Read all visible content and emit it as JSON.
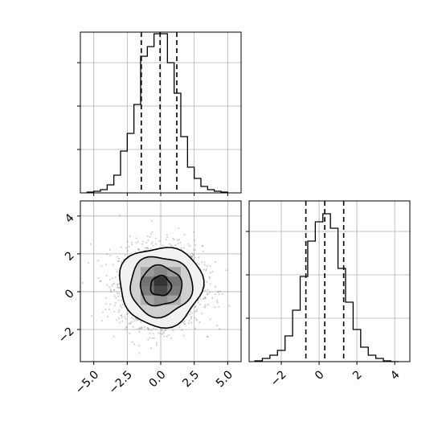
{
  "chart_data": {
    "type": "corner",
    "grid": true,
    "colors": {
      "line": "#000000",
      "grid": "#b0b0b0",
      "scatter": "#8a8a8a"
    },
    "panels": [
      {
        "id": "hist_x",
        "type": "histogram",
        "xlim": [
          -6.0,
          6.0
        ],
        "ylim": [
          0,
          1.0
        ],
        "quantiles": [
          -1.45,
          -0.05,
          1.2
        ],
        "bin_edges": [
          -5.5,
          -5.0,
          -4.5,
          -4.0,
          -3.5,
          -3.0,
          -2.5,
          -2.0,
          -1.5,
          -1.0,
          -0.5,
          0.0,
          0.5,
          1.0,
          1.5,
          2.0,
          2.5,
          3.0,
          3.5,
          4.0,
          4.5,
          5.0
        ],
        "counts": [
          0.005,
          0.01,
          0.02,
          0.05,
          0.11,
          0.26,
          0.37,
          0.55,
          0.85,
          0.91,
          0.99,
          0.99,
          0.81,
          0.62,
          0.35,
          0.16,
          0.09,
          0.04,
          0.02,
          0.01,
          0.005
        ],
        "x_ticks": [
          -5,
          -2.5,
          0,
          2.5,
          5
        ],
        "y_ticks": [
          0.27,
          0.54,
          0.81
        ]
      },
      {
        "id": "hist_y",
        "type": "histogram",
        "xlim": [
          -3.7,
          4.8
        ],
        "ylim": [
          0,
          1.0
        ],
        "quantiles": [
          -0.7,
          0.3,
          1.3
        ],
        "bin_edges": [
          -3.4,
          -3.0,
          -2.6,
          -2.2,
          -1.8,
          -1.4,
          -1.0,
          -0.6,
          -0.2,
          0.2,
          0.6,
          1.0,
          1.4,
          1.8,
          2.2,
          2.6,
          3.0,
          3.4,
          3.8,
          4.2
        ],
        "counts": [
          0.005,
          0.02,
          0.04,
          0.07,
          0.16,
          0.32,
          0.53,
          0.75,
          0.87,
          0.92,
          0.83,
          0.58,
          0.37,
          0.2,
          0.09,
          0.04,
          0.02,
          0.005,
          0.0
        ],
        "x_ticks": [
          -2,
          0,
          2,
          4
        ],
        "x_tick_labels": [
          "−2",
          "0",
          "2",
          "4"
        ],
        "y_ticks": [
          0.27,
          0.54,
          0.81
        ]
      },
      {
        "id": "joint",
        "type": "hist2d",
        "xlim": [
          -6.0,
          6.0
        ],
        "ylim": [
          -3.7,
          4.8
        ],
        "x_ticks": [
          -5,
          -2.5,
          0,
          2.5,
          5
        ],
        "x_tick_labels": [
          "−5.0",
          "−2.5",
          "0.0",
          "2.5",
          "5.0"
        ],
        "y_ticks": [
          -2,
          0,
          2,
          4
        ],
        "y_tick_labels": [
          "−2",
          "0",
          "2",
          "4"
        ],
        "mean": [
          0.0,
          0.3
        ],
        "sigma": [
          1.55,
          1.05
        ],
        "contour_sigmas": [
          0.5,
          1.0,
          1.5,
          2.0
        ],
        "density_cells": [
          {
            "x0": -1.5,
            "x1": -0.5,
            "y0": -0.2,
            "y1": 0.3,
            "level": 0.55
          },
          {
            "x0": -0.5,
            "x1": 0.5,
            "y0": -0.2,
            "y1": 0.3,
            "level": 0.75
          },
          {
            "x0": 0.5,
            "x1": 1.5,
            "y0": -0.2,
            "y1": 0.3,
            "level": 0.55
          },
          {
            "x0": -1.5,
            "x1": -0.5,
            "y0": 0.3,
            "y1": 0.8,
            "level": 0.6
          },
          {
            "x0": -0.5,
            "x1": 0.5,
            "y0": 0.3,
            "y1": 0.8,
            "level": 0.85
          },
          {
            "x0": 0.5,
            "x1": 1.5,
            "y0": 0.3,
            "y1": 0.8,
            "level": 0.6
          },
          {
            "x0": -1.5,
            "x1": -0.5,
            "y0": 0.8,
            "y1": 1.3,
            "level": 0.4
          },
          {
            "x0": -0.5,
            "x1": 0.5,
            "y0": 0.8,
            "y1": 1.3,
            "level": 0.5
          },
          {
            "x0": 0.5,
            "x1": 1.5,
            "y0": 0.8,
            "y1": 1.3,
            "level": 0.4
          },
          {
            "x0": -1.5,
            "x1": -0.5,
            "y0": -0.7,
            "y1": -0.2,
            "level": 0.35
          },
          {
            "x0": -0.5,
            "x1": 0.5,
            "y0": -0.7,
            "y1": -0.2,
            "level": 0.45
          },
          {
            "x0": 0.5,
            "x1": 1.5,
            "y0": -0.7,
            "y1": -0.2,
            "level": 0.35
          }
        ]
      }
    ]
  }
}
